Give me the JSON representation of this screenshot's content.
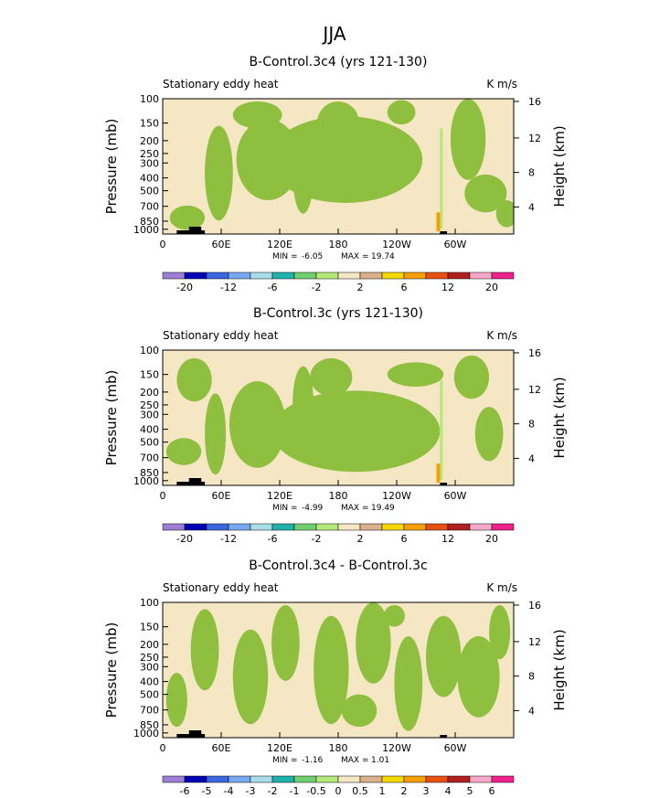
{
  "figure_title": "JJA",
  "colors": {
    "bg_field": "#f5e6c4",
    "green": "#8fbf3f",
    "topo": "#000000"
  },
  "chart_data": [
    {
      "type": "heatmap",
      "title": "B-Control.3c4 (yrs 121-130)",
      "left_label": "Stationary eddy heat",
      "units": "K m/s",
      "ylabel": "Pressure (mb)",
      "ylabel_right": "Height (km)",
      "x_ticks": [
        "0",
        "60E",
        "120E",
        "180",
        "120W",
        "60W"
      ],
      "y_ticks": [
        "100",
        "150",
        "200",
        "250",
        "300",
        "400",
        "500",
        "700",
        "850",
        "1000"
      ],
      "y2_ticks": [
        "16",
        "12",
        "8",
        "4"
      ],
      "min_label": "MIN = ",
      "min": "-6.05",
      "max_label": "MAX = ",
      "max": "19.74",
      "colorbar": {
        "labels": [
          "-20",
          "-12",
          "-6",
          "-2",
          "2",
          "6",
          "12",
          "20"
        ],
        "colors": [
          "#9d7fd6",
          "#0000b4",
          "#3a66e0",
          "#78a8f0",
          "#a8dde8",
          "#20b2aa",
          "#70d070",
          "#b4e878",
          "#f5e6c4",
          "#d8b08c",
          "#f5d800",
          "#f5a000",
          "#e85010",
          "#b02020",
          "#f8a8c8",
          "#f0208c"
        ]
      }
    },
    {
      "type": "heatmap",
      "title": "B-Control.3c (yrs 121-130)",
      "left_label": "Stationary eddy heat",
      "units": "K m/s",
      "ylabel": "Pressure (mb)",
      "ylabel_right": "Height (km)",
      "x_ticks": [
        "0",
        "60E",
        "120E",
        "180",
        "120W",
        "60W"
      ],
      "y_ticks": [
        "100",
        "150",
        "200",
        "250",
        "300",
        "400",
        "500",
        "700",
        "850",
        "1000"
      ],
      "y2_ticks": [
        "16",
        "12",
        "8",
        "4"
      ],
      "min_label": "MIN = ",
      "min": "-4.99",
      "max_label": "MAX = ",
      "max": "19.49",
      "colorbar": {
        "labels": [
          "-20",
          "-12",
          "-6",
          "-2",
          "2",
          "6",
          "12",
          "20"
        ],
        "colors": [
          "#9d7fd6",
          "#0000b4",
          "#3a66e0",
          "#78a8f0",
          "#a8dde8",
          "#20b2aa",
          "#70d070",
          "#b4e878",
          "#f5e6c4",
          "#d8b08c",
          "#f5d800",
          "#f5a000",
          "#e85010",
          "#b02020",
          "#f8a8c8",
          "#f0208c"
        ]
      }
    },
    {
      "type": "heatmap",
      "title": "B-Control.3c4 - B-Control.3c",
      "left_label": "Stationary eddy heat",
      "units": "K m/s",
      "ylabel": "Pressure (mb)",
      "ylabel_right": "Height (km)",
      "x_ticks": [
        "0",
        "60E",
        "120E",
        "180",
        "120W",
        "60W"
      ],
      "y_ticks": [
        "100",
        "150",
        "200",
        "250",
        "300",
        "400",
        "500",
        "700",
        "850",
        "1000"
      ],
      "y2_ticks": [
        "16",
        "12",
        "8",
        "4"
      ],
      "min_label": "MIN = ",
      "min": "-1.16",
      "max_label": "MAX = ",
      "max": "1.01",
      "colorbar": {
        "labels": [
          "-6",
          "-5",
          "-4",
          "-3",
          "-2",
          "-1",
          "-0.5",
          "0",
          "0.5",
          "1",
          "2",
          "3",
          "4",
          "5",
          "6"
        ],
        "colors": [
          "#9d7fd6",
          "#0000b4",
          "#3a66e0",
          "#78a8f0",
          "#a8dde8",
          "#20b2aa",
          "#70d070",
          "#b4e878",
          "#f5e6c4",
          "#d8b08c",
          "#f5d800",
          "#f5a000",
          "#e85010",
          "#b02020",
          "#f8a8c8",
          "#f0208c"
        ]
      }
    }
  ]
}
